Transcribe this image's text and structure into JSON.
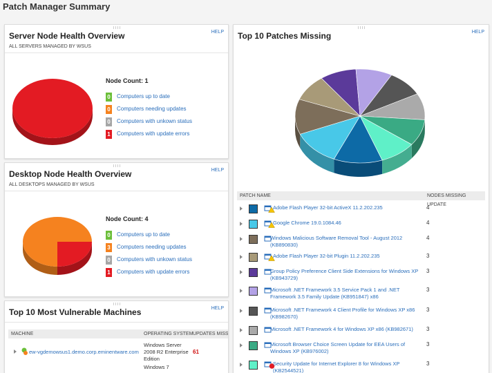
{
  "header": {
    "title": "Patch Manager Summary"
  },
  "server_health": {
    "title": "Server Node Health Overview",
    "subtitle": "ALL SERVERS MANAGED BY WSUS",
    "help": "HELP",
    "node_count_label": "Node Count:",
    "node_count": 1,
    "statuses": [
      {
        "count": 0,
        "label": "Computers up to date",
        "color": "#6cbf3a"
      },
      {
        "count": 0,
        "label": "Computers needing updates",
        "color": "#f5821f"
      },
      {
        "count": 0,
        "label": "Computers with unkown status",
        "color": "#a6a6a6"
      },
      {
        "count": 1,
        "label": "Computers with update errors",
        "color": "#e31b23"
      }
    ]
  },
  "desktop_health": {
    "title": "Desktop Node Health Overview",
    "subtitle": "ALL DESKTOPS MANAGED BY WSUS",
    "help": "HELP",
    "node_count_label": "Node Count:",
    "node_count": 4,
    "statuses": [
      {
        "count": 0,
        "label": "Computers up to date",
        "color": "#6cbf3a"
      },
      {
        "count": 3,
        "label": "Computers needing updates",
        "color": "#f5821f"
      },
      {
        "count": 0,
        "label": "Computers with unkown status",
        "color": "#a6a6a6"
      },
      {
        "count": 1,
        "label": "Computers with update errors",
        "color": "#e31b23"
      }
    ]
  },
  "vulnerable_machines": {
    "title": "Top 10 Most Vulnerable Machines",
    "help": "HELP",
    "columns": [
      "MACHINE",
      "OPERATING SYSTEM",
      "UPDATES MISSIN"
    ],
    "rows": [
      {
        "machine": "ew-vgdemowsus1.demo.corp.eminentware.com",
        "os": "Windows Server 2008 R2 Enterprise Edition",
        "updates_missing": 61
      },
      {
        "os": "Windows 7"
      }
    ]
  },
  "patches_missing": {
    "title": "Top 10 Patches Missing",
    "help": "HELP",
    "columns": [
      "PATCH NAME",
      "NODES MISSING UPDATE"
    ],
    "rows": [
      {
        "color": "#0d6aa6",
        "badge": "warning",
        "name": "Adobe Flash Player 32-bit ActiveX 11.2.202.235",
        "nodes": 4
      },
      {
        "color": "#48c8e8",
        "badge": "warning",
        "name": "Google Chrome 19.0.1084.46",
        "nodes": 4
      },
      {
        "color": "#7d6e5a",
        "name": "Windows Malicious Software Removal Tool - August 2012 (KB890830)",
        "nodes": 4
      },
      {
        "color": "#a89a78",
        "badge": "warning",
        "name": "Adobe Flash Player 32-bit Plugin 11.2.202.235",
        "nodes": 3
      },
      {
        "color": "#5b3a9a",
        "name": "Group Policy Preference Client Side Extensions for Windows XP (KB943729)",
        "nodes": 3
      },
      {
        "color": "#b3a2e6",
        "name": "Microsoft .NET Framework 3.5 Service Pack 1 and .NET Framework 3.5 Family Update (KB951847) x86",
        "nodes": 3
      },
      {
        "color": "#555555",
        "name": "Microsoft .NET Framework 4 Client Profile for Windows XP x86 (KB982670)",
        "nodes": 3
      },
      {
        "color": "#aaaaaa",
        "name": "Microsoft .NET Framework 4 for Windows XP x86 (KB982671)",
        "nodes": 3
      },
      {
        "color": "#3aaa84",
        "name": "Microsoft Browser Choice Screen Update for EEA Users of Windows XP (KB976002)",
        "nodes": 3
      },
      {
        "color": "#5ff0c8",
        "badge": "error",
        "name": "Security Update for Internet Explorer 8 for Windows XP (KB2544521)",
        "nodes": 3
      }
    ]
  }
}
